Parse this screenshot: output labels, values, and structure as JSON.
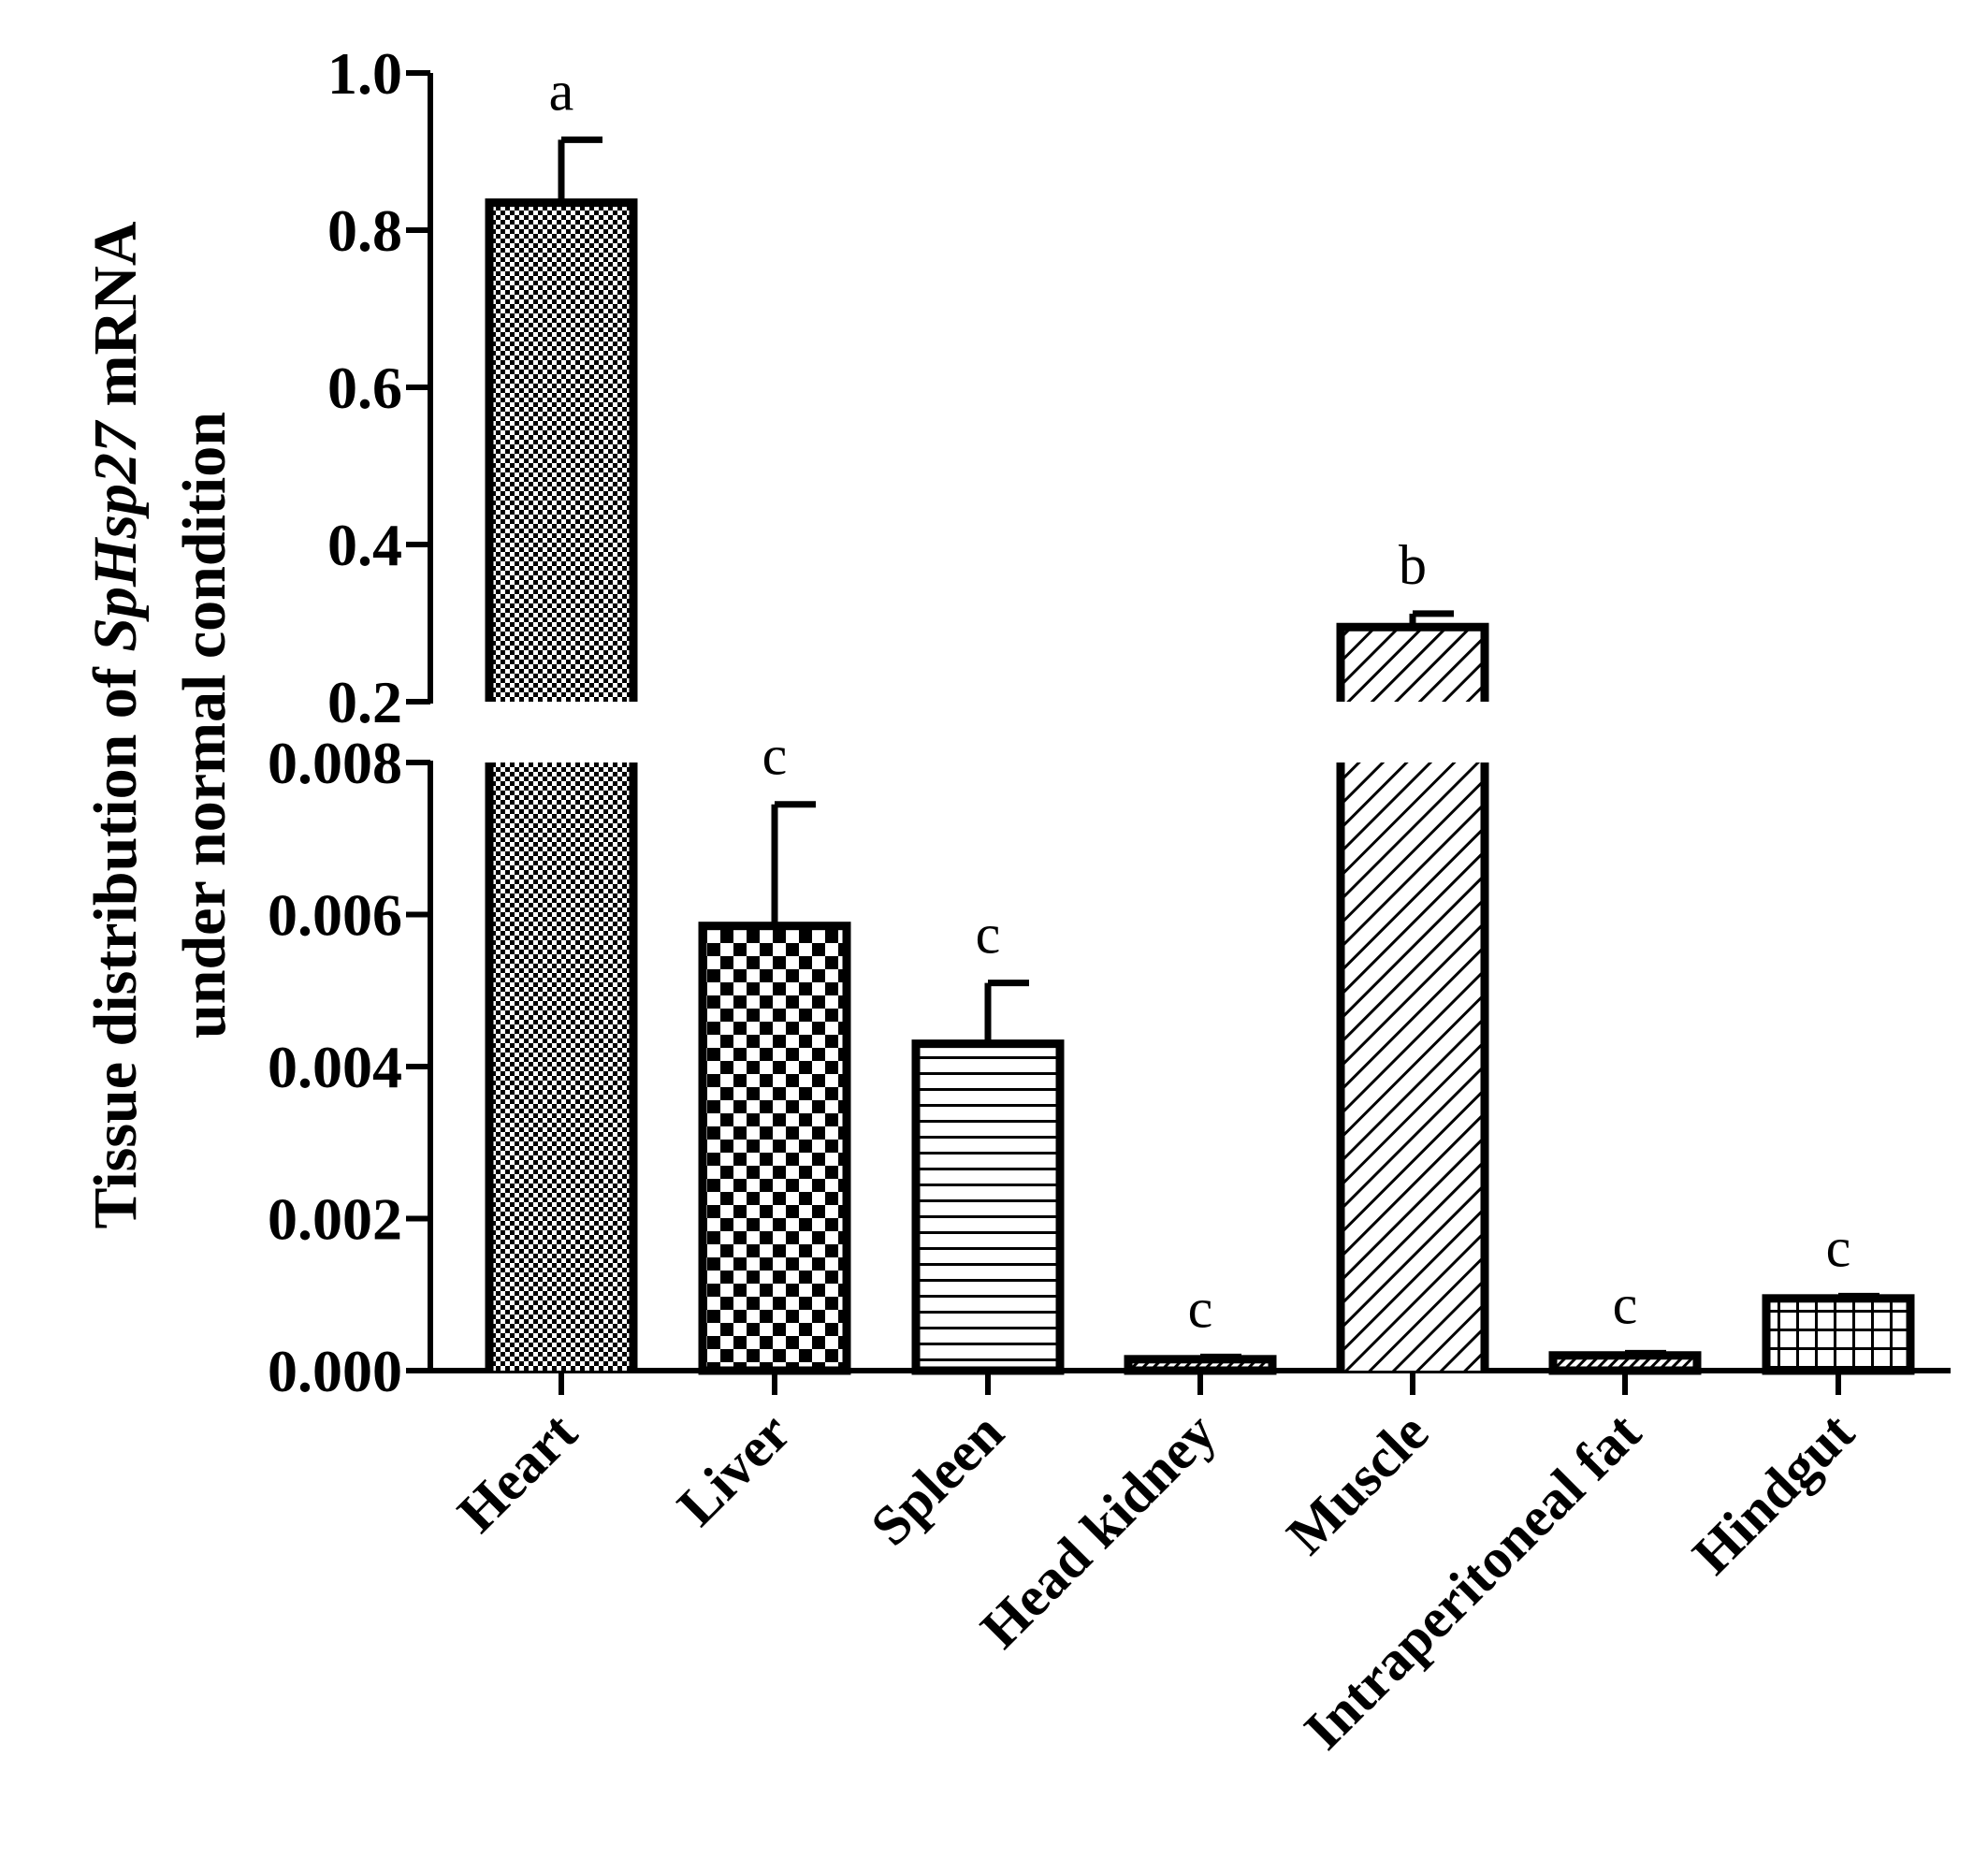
{
  "chart_data": {
    "type": "bar",
    "title": "",
    "ylabel": {
      "line1_prefix": "Tissue distribution of ",
      "line1_gene": "SpHsp27",
      "line1_suffix": " mRNA",
      "line2": "under normal condition"
    },
    "xlabel": "",
    "categories": [
      "Heart",
      "Liver",
      "Spleen",
      "Head kidney",
      "Muscle",
      "Intraperitoneal fat",
      "Hindgut"
    ],
    "values": [
      0.835,
      0.00585,
      0.0043,
      0.00015,
      0.295,
      0.0002,
      0.00095
    ],
    "errors": [
      0.08,
      0.0016,
      0.0008,
      3e-05,
      0.017,
      3e-05,
      3e-05
    ],
    "significance": [
      "a",
      "c",
      "c",
      "c",
      "b",
      "c",
      "c"
    ],
    "patterns": [
      "fine-checker",
      "coarse-checker",
      "horizontal-lines",
      "fine-diagonal",
      "diagonal-lines",
      "fine-diagonal",
      "grid"
    ],
    "y_axis_break": true,
    "lower_segment": {
      "ylim": [
        0,
        0.008
      ],
      "ticks": [
        0.0,
        0.002,
        0.004,
        0.006,
        0.008
      ],
      "tick_labels": [
        "0.000",
        "0.002",
        "0.004",
        "0.006",
        "0.008"
      ]
    },
    "upper_segment": {
      "ylim": [
        0.2,
        1.0
      ],
      "ticks": [
        0.2,
        0.4,
        0.6,
        0.8,
        1.0
      ],
      "tick_labels": [
        "0.2",
        "0.4",
        "0.6",
        "0.8",
        "1.0"
      ]
    },
    "grid": false,
    "legend": "none"
  }
}
